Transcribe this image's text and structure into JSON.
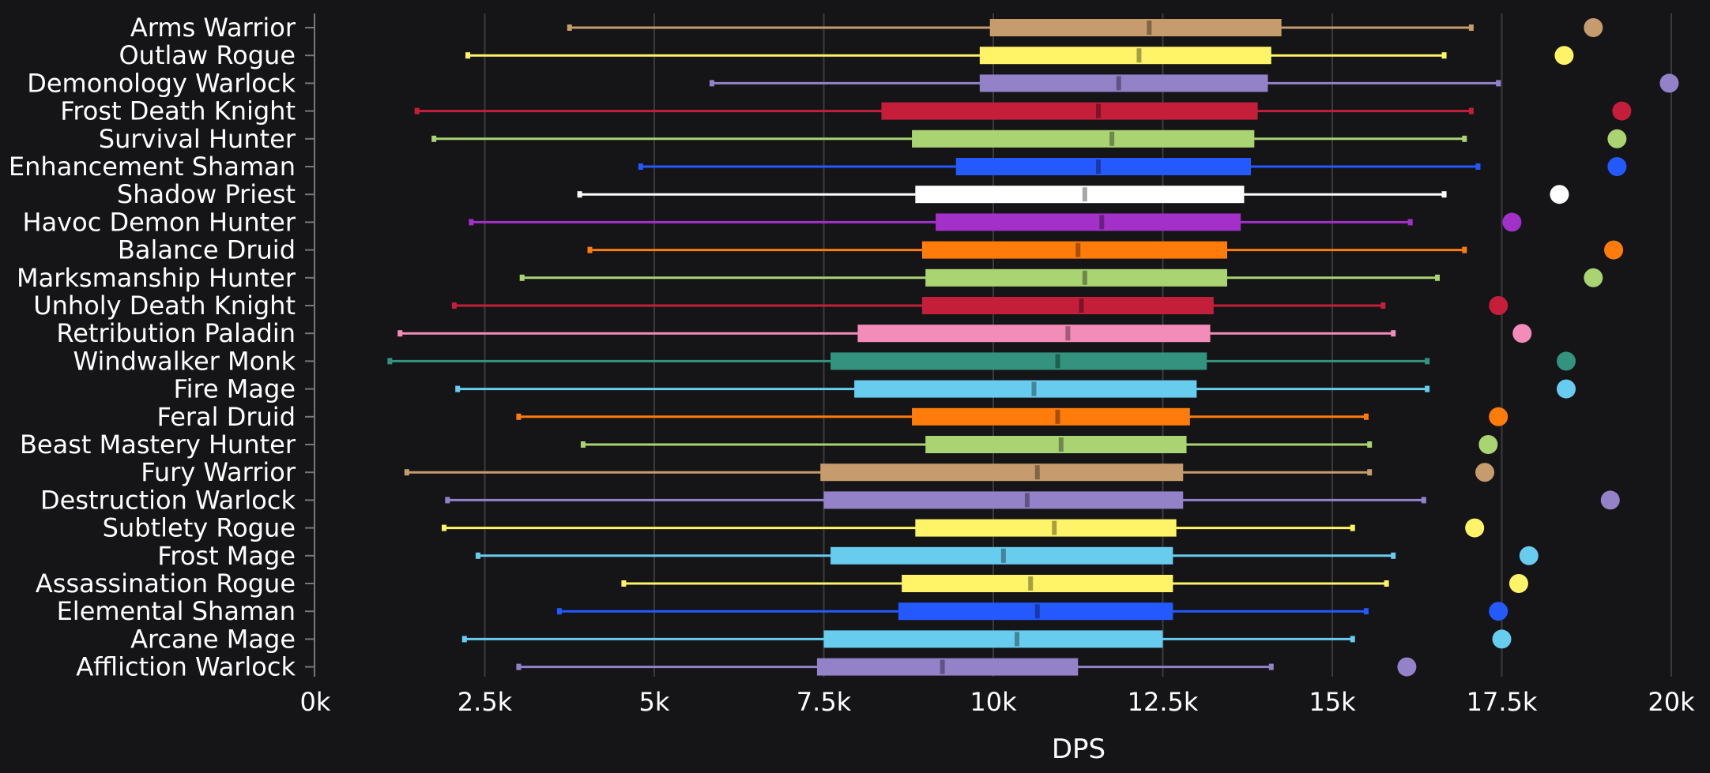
{
  "chart_data": {
    "type": "box",
    "orientation": "horizontal",
    "title": "",
    "xlabel": "DPS",
    "ylabel": "",
    "xlim": [
      0,
      20000
    ],
    "grid": true,
    "legend": "none",
    "xticks": [
      0,
      2500,
      5000,
      7500,
      10000,
      12500,
      15000,
      17500,
      20000
    ],
    "xtick_labels": [
      "0k",
      "2.5k",
      "5k",
      "7.5k",
      "10k",
      "12.5k",
      "15k",
      "17.5k",
      "20k"
    ],
    "series": [
      {
        "name": "Arms Warrior",
        "color": "#C69B6D",
        "min": 3750,
        "q1": 9950,
        "median": 12300,
        "q3": 14250,
        "max": 17050,
        "point": 18850
      },
      {
        "name": "Outlaw Rogue",
        "color": "#FFF468",
        "min": 2250,
        "q1": 9800,
        "median": 12150,
        "q3": 14100,
        "max": 16650,
        "point": 18420
      },
      {
        "name": "Demonology Warlock",
        "color": "#9482C9",
        "min": 5850,
        "q1": 9800,
        "median": 11850,
        "q3": 14050,
        "max": 17450,
        "point": 19970
      },
      {
        "name": "Frost Death Knight",
        "color": "#C41E3A",
        "min": 1500,
        "q1": 8350,
        "median": 11550,
        "q3": 13900,
        "max": 17050,
        "point": 19270
      },
      {
        "name": "Survival Hunter",
        "color": "#AAD372",
        "min": 1750,
        "q1": 8800,
        "median": 11750,
        "q3": 13850,
        "max": 16950,
        "point": 19200
      },
      {
        "name": "Enhancement Shaman",
        "color": "#2459FF",
        "min": 4800,
        "q1": 9450,
        "median": 11550,
        "q3": 13800,
        "max": 17150,
        "point": 19200
      },
      {
        "name": "Shadow Priest",
        "color": "#FFFFFF",
        "min": 3900,
        "q1": 8850,
        "median": 11350,
        "q3": 13700,
        "max": 16650,
        "point": 18350
      },
      {
        "name": "Havoc Demon Hunter",
        "color": "#A330C9",
        "min": 2300,
        "q1": 9150,
        "median": 11600,
        "q3": 13650,
        "max": 16150,
        "point": 17650
      },
      {
        "name": "Balance Druid",
        "color": "#FF7C0A",
        "min": 4050,
        "q1": 8950,
        "median": 11250,
        "q3": 13450,
        "max": 16950,
        "point": 19150
      },
      {
        "name": "Marksmanship Hunter",
        "color": "#AAD372",
        "min": 3050,
        "q1": 9000,
        "median": 11350,
        "q3": 13450,
        "max": 16550,
        "point": 18850
      },
      {
        "name": "Unholy Death Knight",
        "color": "#C41E3A",
        "min": 2050,
        "q1": 8950,
        "median": 11300,
        "q3": 13250,
        "max": 15750,
        "point": 17450
      },
      {
        "name": "Retribution Paladin",
        "color": "#F48CBA",
        "min": 1250,
        "q1": 8000,
        "median": 11100,
        "q3": 13200,
        "max": 15900,
        "point": 17800
      },
      {
        "name": "Windwalker Monk",
        "color": "#33937F",
        "min": 1100,
        "q1": 7600,
        "median": 10950,
        "q3": 13150,
        "max": 16400,
        "point": 18450
      },
      {
        "name": "Fire Mage",
        "color": "#68CCEF",
        "min": 2100,
        "q1": 7950,
        "median": 10600,
        "q3": 13000,
        "max": 16400,
        "point": 18450
      },
      {
        "name": "Feral Druid",
        "color": "#FF7C0A",
        "min": 3000,
        "q1": 8800,
        "median": 10950,
        "q3": 12900,
        "max": 15500,
        "point": 17450
      },
      {
        "name": "Beast Mastery Hunter",
        "color": "#AAD372",
        "min": 3950,
        "q1": 9000,
        "median": 11000,
        "q3": 12850,
        "max": 15550,
        "point": 17300
      },
      {
        "name": "Fury Warrior",
        "color": "#C69B6D",
        "min": 1350,
        "q1": 7450,
        "median": 10650,
        "q3": 12800,
        "max": 15550,
        "point": 17250
      },
      {
        "name": "Destruction Warlock",
        "color": "#9482C9",
        "min": 1950,
        "q1": 7500,
        "median": 10500,
        "q3": 12800,
        "max": 16350,
        "point": 19100
      },
      {
        "name": "Subtlety Rogue",
        "color": "#FFF468",
        "min": 1900,
        "q1": 8850,
        "median": 10900,
        "q3": 12700,
        "max": 15300,
        "point": 17100
      },
      {
        "name": "Frost Mage",
        "color": "#68CCEF",
        "min": 2400,
        "q1": 7600,
        "median": 10150,
        "q3": 12650,
        "max": 15900,
        "point": 17900
      },
      {
        "name": "Assassination Rogue",
        "color": "#FFF468",
        "min": 4550,
        "q1": 8650,
        "median": 10550,
        "q3": 12650,
        "max": 15800,
        "point": 17750
      },
      {
        "name": "Elemental Shaman",
        "color": "#2459FF",
        "min": 3600,
        "q1": 8600,
        "median": 10650,
        "q3": 12650,
        "max": 15500,
        "point": 17450
      },
      {
        "name": "Arcane Mage",
        "color": "#68CCEF",
        "min": 2200,
        "q1": 7500,
        "median": 10350,
        "q3": 12500,
        "max": 15300,
        "point": 17500
      },
      {
        "name": "Affliction Warlock",
        "color": "#9482C9",
        "min": 3000,
        "q1": 7400,
        "median": 9250,
        "q3": 11250,
        "max": 14100,
        "point": 16100
      }
    ]
  }
}
